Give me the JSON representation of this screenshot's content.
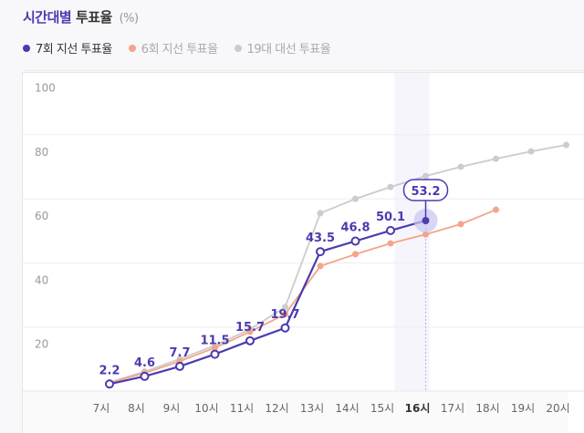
{
  "title": {
    "accent": "시간대별",
    "main": "투표율",
    "unit": "(%)"
  },
  "legend": [
    {
      "label": "7회 지선 투표율",
      "color": "#4b3bb0",
      "active": true
    },
    {
      "label": "6회 지선 투표율",
      "color": "#f4a48a",
      "active": false
    },
    {
      "label": "19대 대선 투표율",
      "color": "#cccccc",
      "active": false
    }
  ],
  "tooltip": {
    "value": "53.2",
    "hour": "16시"
  },
  "chart_data": {
    "type": "line",
    "title": "시간대별 투표율 (%)",
    "xlabel": "",
    "ylabel": "",
    "ylim": [
      0,
      100
    ],
    "yticks": [
      20,
      40,
      60,
      80,
      100
    ],
    "grid": true,
    "legend_position": "top-left",
    "categories": [
      "7시",
      "8시",
      "9시",
      "10시",
      "11시",
      "12시",
      "13시",
      "14시",
      "15시",
      "16시",
      "17시",
      "18시",
      "19시",
      "20시"
    ],
    "highlighted_category": "16시",
    "series": [
      {
        "name": "7회 지선 투표율",
        "color": "#4b3bb0",
        "values": [
          2.2,
          4.6,
          7.7,
          11.5,
          15.7,
          19.7,
          43.5,
          46.8,
          50.1,
          53.2,
          null,
          null,
          null,
          null
        ],
        "labeled": true
      },
      {
        "name": "6회 지선 투표율",
        "color": "#f4a48a",
        "values": [
          2.6,
          5.6,
          9.3,
          13.5,
          18.5,
          24.0,
          39.0,
          42.7,
          46.1,
          48.9,
          52.1,
          56.6,
          null,
          null
        ]
      },
      {
        "name": "19대 대선 투표율",
        "color": "#cccccc",
        "values": [
          2.7,
          6.1,
          10.0,
          14.2,
          19.3,
          26.2,
          55.5,
          60.0,
          63.7,
          67.1,
          70.0,
          72.5,
          74.8,
          76.8
        ]
      }
    ]
  }
}
